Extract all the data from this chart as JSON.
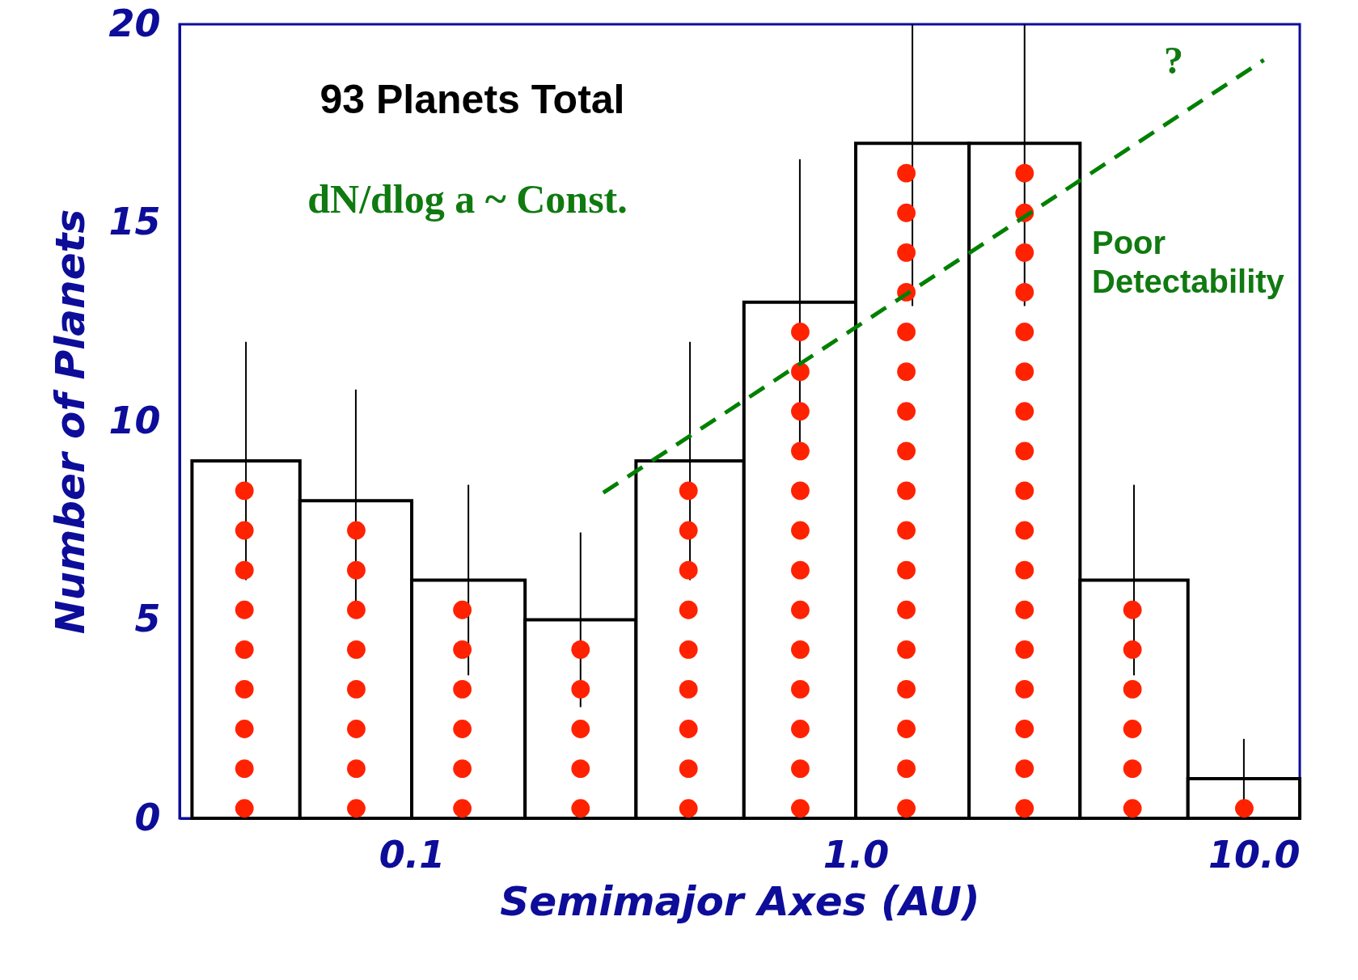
{
  "chart_data": {
    "type": "histogram",
    "xlabel": "Semimajor Axes   (AU)",
    "ylabel": "Number of Planets",
    "annotations": [
      "93  Planets  Total",
      "dN/dlog a ~ Const.",
      "Poor Detectability",
      "?"
    ],
    "bins": [
      0.032,
      0.056,
      0.1,
      0.18,
      0.32,
      0.56,
      1.0,
      1.8,
      3.2,
      5.6,
      10
    ],
    "values": [
      9,
      8,
      6,
      5,
      9,
      13,
      17,
      17,
      6,
      1
    ],
    "errors": [
      3,
      2.8,
      2.4,
      2.2,
      3,
      3.6,
      [
        12.9,
        20
      ],
      [
        12.9,
        20
      ],
      2.4,
      1
    ],
    "color": "#ffffff",
    "log": "x",
    "xlim": [
      0.03,
      10
    ],
    "xticks": [
      0.1,
      {
        "value": 1,
        "label": "1.0"
      },
      {
        "value": 10,
        "label": "10.0"
      }
    ],
    "ylim": [
      0,
      20
    ],
    "yticks": [
      0,
      5,
      10,
      15,
      20
    ],
    "series": [
      {
        "type": "scatter",
        "color": "#ff2200",
        "marker": "circle",
        "x": [
          0.042,
          0.042,
          0.042,
          0.042,
          0.042,
          0.042,
          0.042,
          0.042,
          0.042,
          0.075,
          0.075,
          0.075,
          0.075,
          0.075,
          0.075,
          0.075,
          0.075,
          0.13,
          0.13,
          0.13,
          0.13,
          0.13,
          0.13,
          0.24,
          0.24,
          0.24,
          0.24,
          0.24,
          0.42,
          0.42,
          0.42,
          0.42,
          0.42,
          0.42,
          0.42,
          0.42,
          0.42,
          0.75,
          0.75,
          0.75,
          0.75,
          0.75,
          0.75,
          0.75,
          0.75,
          0.75,
          0.75,
          0.75,
          0.75,
          0.75,
          1.3,
          1.3,
          1.3,
          1.3,
          1.3,
          1.3,
          1.3,
          1.3,
          1.3,
          1.3,
          1.3,
          1.3,
          1.3,
          1.3,
          1.3,
          1.3,
          1.3,
          2.4,
          2.4,
          2.4,
          2.4,
          2.4,
          2.4,
          2.4,
          2.4,
          2.4,
          2.4,
          2.4,
          2.4,
          2.4,
          2.4,
          2.4,
          2.4,
          2.4,
          4.2,
          4.2,
          4.2,
          4.2,
          4.2,
          4.2,
          7.5
        ],
        "values": [
          0.25,
          1.25,
          2.25,
          3.25,
          4.25,
          5.25,
          6.25,
          7.25,
          8.25,
          0.25,
          1.25,
          2.25,
          3.25,
          4.25,
          5.25,
          6.25,
          7.25,
          0.25,
          1.25,
          2.25,
          3.25,
          4.25,
          5.25,
          0.25,
          1.25,
          2.25,
          3.25,
          4.25,
          0.25,
          1.25,
          2.25,
          3.25,
          4.25,
          5.25,
          6.25,
          7.25,
          8.25,
          0.25,
          1.25,
          2.25,
          3.25,
          4.25,
          5.25,
          6.25,
          7.25,
          8.25,
          9.25,
          10.25,
          11.25,
          12.25,
          0.25,
          1.25,
          2.25,
          3.25,
          4.25,
          5.25,
          6.25,
          7.25,
          8.25,
          9.25,
          10.25,
          11.25,
          12.25,
          13.25,
          14.25,
          15.25,
          16.25,
          0.25,
          1.25,
          2.25,
          3.25,
          4.25,
          5.25,
          6.25,
          7.25,
          8.25,
          9.25,
          10.25,
          11.25,
          12.25,
          13.25,
          14.25,
          15.25,
          16.25,
          0.25,
          1.25,
          2.25,
          3.25,
          4.25,
          5.25,
          0.25
        ]
      },
      {
        "type": "line",
        "color": "#008000",
        "marker": "none",
        "line_style": "dashed",
        "x": [
          0.27,
          8.3
        ],
        "values": [
          8.2,
          19.1
        ]
      }
    ]
  }
}
